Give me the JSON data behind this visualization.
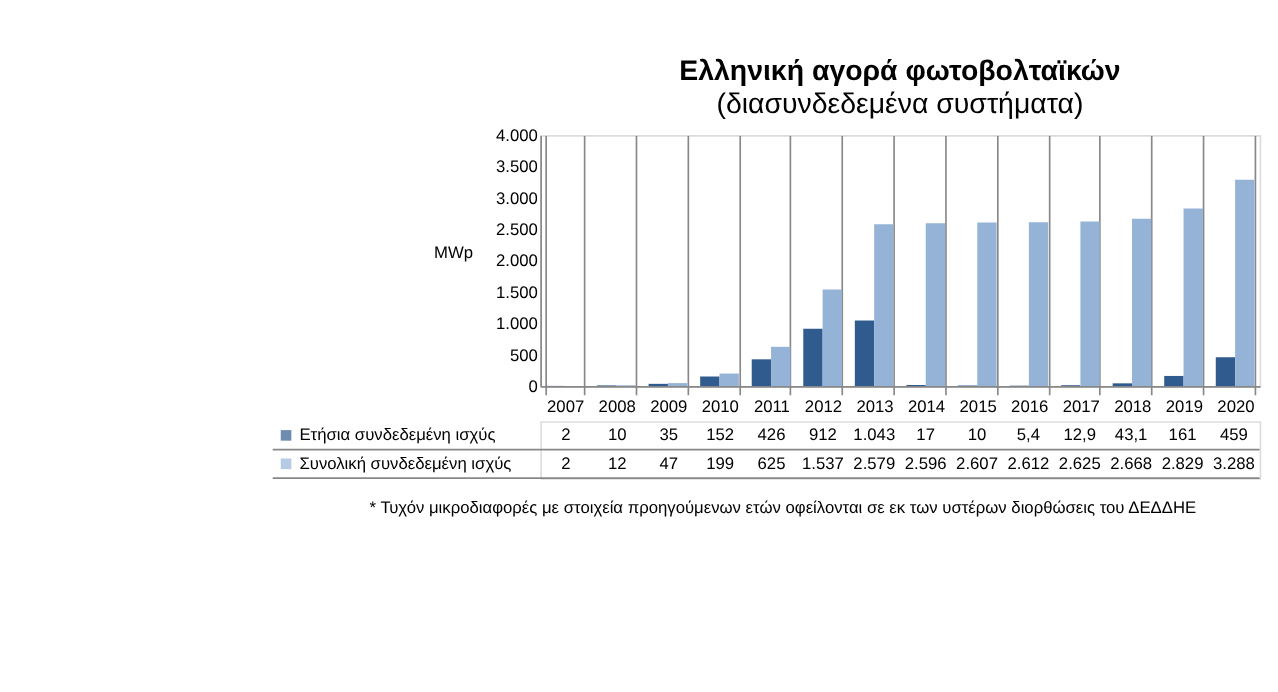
{
  "chart_data": {
    "type": "bar",
    "title": "Ελληνική αγορά φωτοβολταϊκών",
    "subtitle": "(διασυνδεδεμένα συστήματα)",
    "ylabel": "MWp",
    "categories": [
      "2007",
      "2008",
      "2009",
      "2010",
      "2011",
      "2012",
      "2013",
      "2014",
      "2015",
      "2016",
      "2017",
      "2018",
      "2019",
      "2020"
    ],
    "series": [
      {
        "name": "Ετήσια συνδεδεμένη  ισχύς",
        "color": "#2f5b8f",
        "values": [
          2,
          10,
          35,
          152,
          426,
          912,
          1043,
          17,
          10,
          5.4,
          12.9,
          43.1,
          161,
          459
        ],
        "value_labels": [
          "2",
          "10",
          "35",
          "152",
          "426",
          "912",
          "1.043",
          "17",
          "10",
          "5,4",
          "12,9",
          "43,1",
          "161",
          "459"
        ]
      },
      {
        "name": "Συνολική συνδεδεμένη  ισχύς",
        "color": "#95b3d7",
        "values": [
          2,
          12,
          47,
          199,
          625,
          1537,
          2579,
          2596,
          2607,
          2612,
          2625,
          2668,
          2829,
          3288
        ],
        "value_labels": [
          "2",
          "12",
          "47",
          "199",
          "625",
          "1.537",
          "2.579",
          "2.596",
          "2.607",
          "2.612",
          "2.625",
          "2.668",
          "2.829",
          "3.288"
        ]
      }
    ],
    "ylim": [
      0,
      4000
    ],
    "yticks": [
      0,
      500,
      {
        "value": 1000,
        "label": "1.000"
      },
      {
        "value": 1500,
        "label": "1.500"
      },
      {
        "value": 2000,
        "label": "2.000"
      },
      {
        "value": 2500,
        "label": "2.500"
      },
      {
        "value": 3000,
        "label": "3.000"
      },
      {
        "value": 3500,
        "label": "3.500"
      },
      {
        "value": 4000,
        "label": "4.000"
      }
    ],
    "grid": false,
    "legend": "bottom",
    "annotations": [
      "* Τυχόν μικροδιαφορές με στοιχεία προηγούμενων ετών οφείλονται σε εκ των υστέρων διορθώσεις του ΔΕΔΔΗΕ"
    ]
  }
}
